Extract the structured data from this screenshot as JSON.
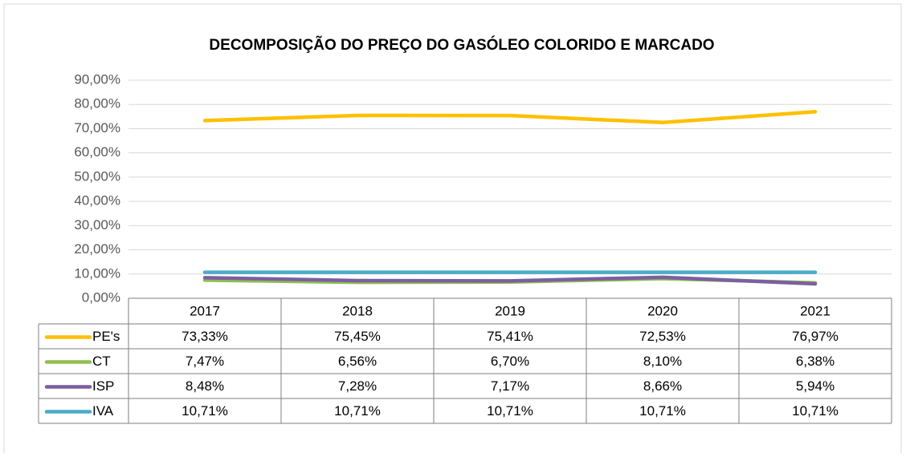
{
  "chart_data": {
    "type": "line",
    "title": "DECOMPOSIÇÃO  DO PREÇO DO GASÓLEO COLORIDO E MARCADO",
    "categories": [
      "2017",
      "2018",
      "2019",
      "2020",
      "2021"
    ],
    "series": [
      {
        "name": "PE's",
        "color": "#ffc000",
        "values": [
          73.33,
          75.45,
          75.41,
          72.53,
          76.97
        ],
        "value_labels": [
          "73,33%",
          "75,45%",
          "75,41%",
          "72,53%",
          "76,97%"
        ]
      },
      {
        "name": "CT",
        "color": "#8fbf4f",
        "values": [
          7.47,
          6.56,
          6.7,
          8.1,
          6.38
        ],
        "value_labels": [
          "7,47%",
          "6,56%",
          "6,70%",
          "8,10%",
          "6,38%"
        ]
      },
      {
        "name": "ISP",
        "color": "#7c5fa1",
        "values": [
          8.48,
          7.28,
          7.17,
          8.66,
          5.94
        ],
        "value_labels": [
          "8,48%",
          "7,28%",
          "7,17%",
          "8,66%",
          "5,94%"
        ]
      },
      {
        "name": "IVA",
        "color": "#4bacc6",
        "values": [
          10.71,
          10.71,
          10.71,
          10.71,
          10.71
        ],
        "value_labels": [
          "10,71%",
          "10,71%",
          "10,71%",
          "10,71%",
          "10,71%"
        ]
      }
    ],
    "ylim": [
      0,
      90
    ],
    "yticks": [
      {
        "value": 0,
        "label": "0,00%"
      },
      {
        "value": 10,
        "label": "10,00%"
      },
      {
        "value": 20,
        "label": "20,00%"
      },
      {
        "value": 30,
        "label": "30,00%"
      },
      {
        "value": 40,
        "label": "40,00%"
      },
      {
        "value": 50,
        "label": "50,00%"
      },
      {
        "value": 60,
        "label": "60,00%"
      },
      {
        "value": 70,
        "label": "70,00%"
      },
      {
        "value": 80,
        "label": "80,00%"
      },
      {
        "value": 90,
        "label": "90,00%"
      }
    ],
    "grid": true
  }
}
